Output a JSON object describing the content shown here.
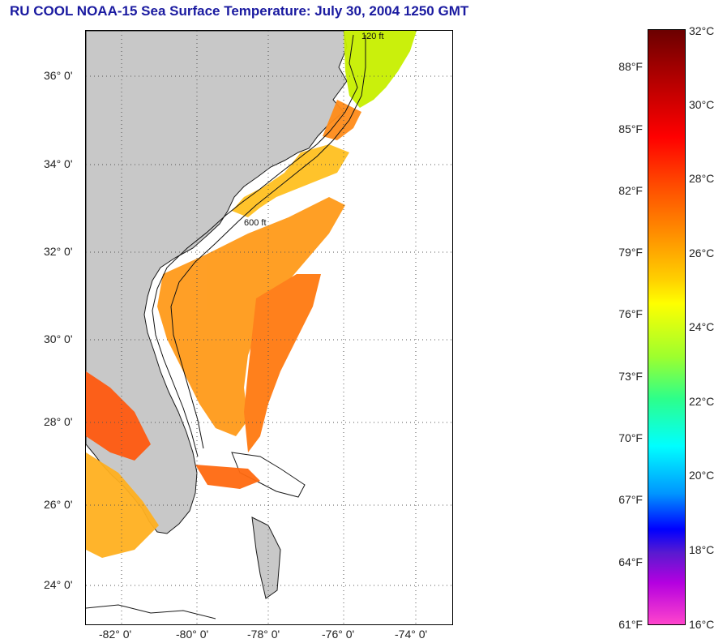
{
  "title": "RU COOL  NOAA-15  Sea Surface Temperature:  July 30, 2004 1250 GMT",
  "map": {
    "lat_labels": [
      "36° 0'",
      "34° 0'",
      "32° 0'",
      "30° 0'",
      "28° 0'",
      "26° 0'",
      "24° 0'"
    ],
    "lon_labels": [
      "-82° 0'",
      "-80° 0'",
      "-78° 0'",
      "-76° 0'",
      "-74° 0'"
    ],
    "contour_labels": [
      "120 ft",
      "600 ft"
    ],
    "colors": {
      "land": "#c8c8c8",
      "ocean": "#ffffff",
      "grid": "#555555"
    }
  },
  "colorbar": {
    "fahrenheit": [
      "88°F",
      "85°F",
      "82°F",
      "79°F",
      "76°F",
      "73°F",
      "70°F",
      "67°F",
      "64°F",
      "61°F"
    ],
    "celsius": [
      "32°C",
      "30°C",
      "28°C",
      "26°C",
      "24°C",
      "22°C",
      "20°C",
      "18°C",
      "16°C"
    ]
  }
}
